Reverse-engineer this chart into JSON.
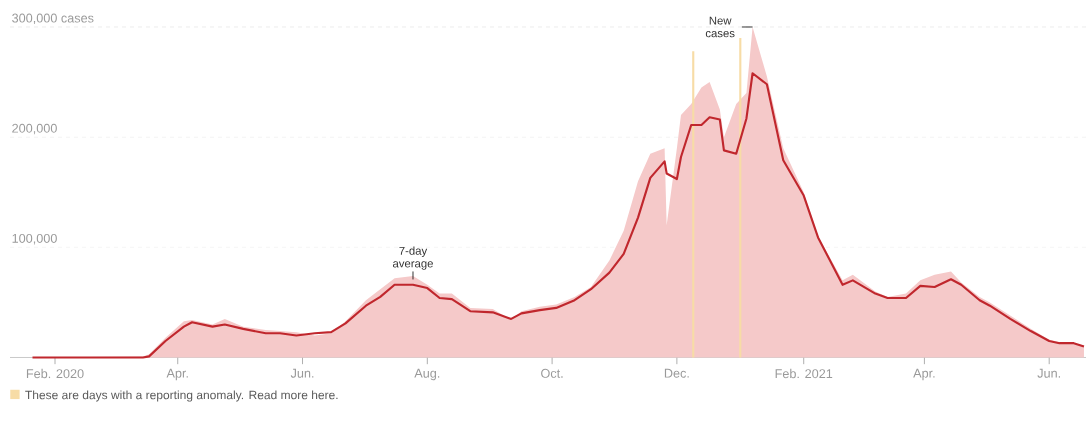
{
  "chart_data": {
    "type": "line",
    "xlim": [
      "2020-01-10",
      "2021-06-19"
    ],
    "ylim": [
      0,
      300000
    ],
    "xticks": [
      {
        "value": "2020-02-01",
        "label": "Feb. 2020"
      },
      {
        "value": "2020-04-01",
        "label": "Apr."
      },
      {
        "value": "2020-06-01",
        "label": "Jun."
      },
      {
        "value": "2020-08-01",
        "label": "Aug."
      },
      {
        "value": "2020-10-01",
        "label": "Oct."
      },
      {
        "value": "2020-12-01",
        "label": "Dec."
      },
      {
        "value": "2021-02-01",
        "label": "Feb. 2021"
      },
      {
        "value": "2021-04-01",
        "label": "Apr."
      },
      {
        "value": "2021-06-01",
        "label": "Jun."
      }
    ],
    "yticks": [
      {
        "value": 100000,
        "label": "100,000"
      },
      {
        "value": 200000,
        "label": "200,000"
      },
      {
        "value": 300000,
        "label": "300,000 cases"
      }
    ],
    "grid": "y",
    "legend": "bottom left",
    "series": [
      {
        "type": "area",
        "color": "#f5c9c9",
        "x": [
          "2020-01-21",
          "2020-03-15",
          "2020-03-18",
          "2020-03-26",
          "2020-04-04",
          "2020-04-08",
          "2020-04-18",
          "2020-04-24",
          "2020-05-03",
          "2020-05-14",
          "2020-05-21",
          "2020-05-29",
          "2020-06-07",
          "2020-06-15",
          "2020-06-22",
          "2020-07-02",
          "2020-07-09",
          "2020-07-16",
          "2020-07-25",
          "2020-08-01",
          "2020-08-07",
          "2020-08-13",
          "2020-08-22",
          "2020-09-02",
          "2020-09-11",
          "2020-09-16",
          "2020-09-25",
          "2020-10-03",
          "2020-10-12",
          "2020-10-20",
          "2020-10-29",
          "2020-11-05",
          "2020-11-12",
          "2020-11-18",
          "2020-11-25",
          "2020-11-26",
          "2020-12-01",
          "2020-12-03",
          "2020-12-08",
          "2020-12-13",
          "2020-12-17",
          "2020-12-22",
          "2020-12-24",
          "2020-12-30",
          "2021-01-04",
          "2021-01-07",
          "2021-01-14",
          "2021-01-22",
          "2021-02-01",
          "2021-02-08",
          "2021-02-20",
          "2021-02-25",
          "2021-03-08",
          "2021-03-14",
          "2021-03-23",
          "2021-03-30",
          "2021-04-06",
          "2021-04-14",
          "2021-04-19",
          "2021-04-28",
          "2021-05-03",
          "2021-05-13",
          "2021-05-23",
          "2021-06-01",
          "2021-06-06",
          "2021-06-13",
          "2021-06-18"
        ],
        "values": [
          0,
          1000,
          3000,
          18000,
          33000,
          34000,
          30000,
          35000,
          28000,
          25000,
          24000,
          23000,
          20000,
          22000,
          33000,
          52000,
          62000,
          72000,
          74000,
          66000,
          58000,
          58000,
          45000,
          44000,
          34000,
          42000,
          46000,
          48000,
          55000,
          64000,
          88000,
          115000,
          160000,
          185000,
          190000,
          120000,
          190000,
          220000,
          230000,
          245000,
          250000,
          225000,
          200000,
          230000,
          240000,
          300000,
          255000,
          190000,
          150000,
          110000,
          70000,
          75000,
          60000,
          55000,
          58000,
          70000,
          75000,
          78000,
          68000,
          55000,
          50000,
          38000,
          26000,
          16000,
          14000,
          13000,
          11000
        ]
      },
      {
        "type": "bar",
        "name": "These are days with a reporting anomaly. Read more here.",
        "color": "#f7dca6",
        "x": [
          "2020-12-09",
          "2021-01-01"
        ],
        "values": [
          278000,
          290000
        ]
      },
      {
        "color": "#c0272d",
        "x": [
          "2020-01-21",
          "2020-03-15",
          "2020-03-18",
          "2020-03-26",
          "2020-04-04",
          "2020-04-08",
          "2020-04-18",
          "2020-04-24",
          "2020-05-03",
          "2020-05-14",
          "2020-05-21",
          "2020-05-29",
          "2020-06-07",
          "2020-06-15",
          "2020-06-22",
          "2020-07-02",
          "2020-07-09",
          "2020-07-16",
          "2020-07-25",
          "2020-08-01",
          "2020-08-07",
          "2020-08-13",
          "2020-08-22",
          "2020-09-02",
          "2020-09-11",
          "2020-09-16",
          "2020-09-25",
          "2020-10-03",
          "2020-10-12",
          "2020-10-20",
          "2020-10-29",
          "2020-11-05",
          "2020-11-12",
          "2020-11-18",
          "2020-11-25",
          "2020-11-26",
          "2020-12-01",
          "2020-12-03",
          "2020-12-08",
          "2020-12-13",
          "2020-12-17",
          "2020-12-22",
          "2020-12-24",
          "2020-12-30",
          "2021-01-04",
          "2021-01-07",
          "2021-01-14",
          "2021-01-22",
          "2021-02-01",
          "2021-02-08",
          "2021-02-20",
          "2021-02-25",
          "2021-03-08",
          "2021-03-14",
          "2021-03-23",
          "2021-03-30",
          "2021-04-06",
          "2021-04-14",
          "2021-04-19",
          "2021-04-28",
          "2021-05-03",
          "2021-05-13",
          "2021-05-23",
          "2021-06-01",
          "2021-06-06",
          "2021-06-13",
          "2021-06-18"
        ],
        "values": [
          0,
          0,
          1000,
          15000,
          28000,
          32000,
          28000,
          30000,
          26000,
          22000,
          22000,
          20000,
          22000,
          23000,
          31000,
          47000,
          55000,
          66000,
          66000,
          63000,
          54000,
          53000,
          42000,
          41000,
          35000,
          40000,
          43000,
          45000,
          52000,
          62000,
          77000,
          94000,
          127000,
          163000,
          178000,
          167000,
          162000,
          182000,
          211000,
          211000,
          218000,
          216000,
          188000,
          185000,
          217000,
          258000,
          248000,
          179000,
          147000,
          109000,
          66000,
          70000,
          58000,
          54000,
          54000,
          65000,
          64000,
          71000,
          66000,
          52000,
          47000,
          35000,
          24000,
          15000,
          13000,
          13000,
          10000
        ]
      }
    ],
    "annotations": [
      {
        "text": "7-day average",
        "x": "2020-07-25",
        "y": 66000
      },
      {
        "text": "New cases",
        "x": "2021-01-07",
        "y": 300000
      }
    ]
  }
}
